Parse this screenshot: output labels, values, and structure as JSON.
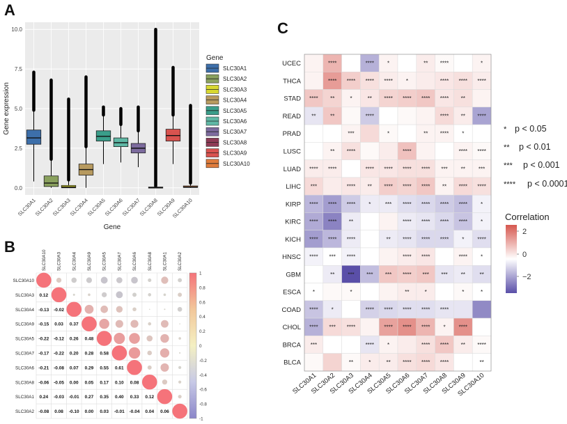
{
  "panels": {
    "A": "A",
    "B": "B",
    "C": "C"
  },
  "chart_data": [
    {
      "panel": "A",
      "type": "boxplot",
      "xlabel": "Gene",
      "ylabel": "Gene expression",
      "ylim": [
        0,
        10
      ],
      "yticks": [
        "0.0",
        "2.5",
        "5.0",
        "7.5",
        "10.0"
      ],
      "legend_title": "Gene",
      "categories": [
        "SLC30A1",
        "SLC30A2",
        "SLC30A3",
        "SLC30A4",
        "SLC30A5",
        "SLC30A6",
        "SLC30A7",
        "SLC30A8",
        "SLC30A9",
        "SLC30A10"
      ],
      "colors": [
        "#3d6faa",
        "#8aa15e",
        "#d8d830",
        "#b79a5f",
        "#3a9e8a",
        "#5fb8a5",
        "#7d6b9e",
        "#8e3b55",
        "#d9534f",
        "#e07c3c"
      ],
      "boxes": [
        {
          "whislo": 0.4,
          "q1": 2.75,
          "med": 3.15,
          "q3": 3.65,
          "whishi": 4.9,
          "outmax": 7.3
        },
        {
          "whislo": 0.0,
          "q1": 0.08,
          "med": 0.3,
          "q3": 0.75,
          "whishi": 1.8,
          "outmax": 6.8
        },
        {
          "whislo": 0.0,
          "q1": 0.0,
          "med": 0.05,
          "q3": 0.15,
          "whishi": 0.5,
          "outmax": 5.6
        },
        {
          "whislo": 0.0,
          "q1": 0.8,
          "med": 1.15,
          "q3": 1.5,
          "whishi": 2.6,
          "outmax": 7.0
        },
        {
          "whislo": 1.5,
          "q1": 2.95,
          "med": 3.25,
          "q3": 3.6,
          "whishi": 4.6,
          "outmax": 5.1
        },
        {
          "whislo": 1.6,
          "q1": 2.6,
          "med": 2.85,
          "q3": 3.15,
          "whishi": 4.0,
          "outmax": 5.0
        },
        {
          "whislo": 1.3,
          "q1": 2.2,
          "med": 2.5,
          "q3": 2.8,
          "whishi": 3.6,
          "outmax": 5.1
        },
        {
          "whislo": 0.0,
          "q1": 0.0,
          "med": 0.0,
          "q3": 0.05,
          "whishi": 0.1,
          "outmax": 10.0
        },
        {
          "whislo": 1.5,
          "q1": 2.95,
          "med": 3.3,
          "q3": 3.7,
          "whishi": 4.6,
          "outmax": 7.6
        },
        {
          "whislo": 0.0,
          "q1": 0.02,
          "med": 0.05,
          "q3": 0.12,
          "whishi": 0.3,
          "outmax": 5.2
        }
      ]
    },
    {
      "panel": "B",
      "type": "correlogram",
      "order": [
        "SLC30A10",
        "SLC30A3",
        "SLC30A4",
        "SLC30A9",
        "SLC30A5",
        "SLC30A7",
        "SLC30A6",
        "SLC30A8",
        "SLC30A1",
        "SLC30A2"
      ],
      "lower": [
        [],
        [
          "0.12"
        ],
        [
          "-0.13",
          "-0.02"
        ],
        [
          "-0.15",
          "0.03",
          "0.37"
        ],
        [
          "-0.22",
          "-0.12",
          "0.26",
          "0.48"
        ],
        [
          "-0.17",
          "-0.22",
          "0.20",
          "0.28",
          "0.58"
        ],
        [
          "-0.21",
          "-0.08",
          "0.07",
          "0.29",
          "0.55",
          "0.61"
        ],
        [
          "-0.06",
          "-0.05",
          "0.00",
          "0.05",
          "0.17",
          "0.10",
          "0.08"
        ],
        [
          "0.24",
          "-0.03",
          "-0.01",
          "0.27",
          "0.35",
          "0.40",
          "0.33",
          "0.12"
        ],
        [
          "-0.08",
          "0.08",
          "-0.10",
          "0.00",
          "0.03",
          "-0.01",
          "-0.04",
          "0.04",
          "0.06"
        ]
      ],
      "colorbar_ticks": [
        "1",
        "0.8",
        "0.6",
        "0.4",
        "0.2",
        "0",
        "-0.2",
        "-0.4",
        "-0.6",
        "-0.8",
        "-1"
      ]
    },
    {
      "panel": "C",
      "type": "heatmap",
      "rows": [
        "UCEC",
        "THCA",
        "STAD",
        "READ",
        "PRAD",
        "LUSC",
        "LUAD",
        "LIHC",
        "KIRP",
        "KIRC",
        "KICH",
        "HNSC",
        "GBM",
        "ESCA",
        "COAD",
        "CHOL",
        "BRCA",
        "BLCA"
      ],
      "cols": [
        "SLC30A1",
        "SLC30A2",
        "SLC30A3",
        "SLC30A4",
        "SLC30A5",
        "SLC30A6",
        "SLC30A7",
        "SLC30A8",
        "SLC30A9",
        "SLC30A10"
      ],
      "values": [
        [
          0.2,
          1.2,
          0.0,
          -1.2,
          0.2,
          0.0,
          0.3,
          0.1,
          0.0,
          0.2
        ],
        [
          0.2,
          1.6,
          0.8,
          0.5,
          0.3,
          0.2,
          0.3,
          0.4,
          0.5,
          0.3
        ],
        [
          0.9,
          0.7,
          0.2,
          0.4,
          0.7,
          0.8,
          0.9,
          0.4,
          0.5,
          0.2
        ],
        [
          -0.4,
          0.9,
          0.1,
          -0.8,
          0.0,
          0.1,
          0.2,
          0.6,
          0.3,
          -1.4
        ],
        [
          0.0,
          0.0,
          0.2,
          0.6,
          0.1,
          0.0,
          0.2,
          0.2,
          0.0,
          0.0
        ],
        [
          0.0,
          0.2,
          0.5,
          0.1,
          0.3,
          1.0,
          0.2,
          0.0,
          0.2,
          0.1
        ],
        [
          0.3,
          0.3,
          0.0,
          0.4,
          0.4,
          0.5,
          0.5,
          0.2,
          0.2,
          0.2
        ],
        [
          0.6,
          0.3,
          0.4,
          0.3,
          0.8,
          0.7,
          0.9,
          0.2,
          0.6,
          0.5
        ],
        [
          -1.1,
          -1.5,
          -0.8,
          -0.3,
          -0.3,
          -0.5,
          -0.6,
          -0.8,
          -1.0,
          -0.2
        ],
        [
          -1.3,
          -1.9,
          -0.3,
          0.0,
          0.2,
          -0.3,
          -0.4,
          -0.6,
          -0.9,
          -0.2
        ],
        [
          -1.5,
          -1.1,
          -0.3,
          0.0,
          -0.3,
          -0.4,
          -0.6,
          -0.6,
          -0.2,
          -0.5
        ],
        [
          -0.2,
          0.0,
          -0.2,
          0.0,
          0.2,
          0.3,
          0.4,
          0.0,
          0.2,
          0.0
        ],
        [
          0.0,
          -0.3,
          -2.7,
          -1.0,
          0.9,
          0.8,
          0.9,
          -0.4,
          -0.3,
          -0.5
        ],
        [
          0.0,
          0.1,
          0.1,
          0.0,
          0.2,
          0.3,
          0.3,
          0.0,
          0.1,
          0.0
        ],
        [
          -0.9,
          -0.3,
          0.0,
          -0.7,
          -0.6,
          -0.5,
          -0.5,
          -0.4,
          -0.4,
          -1.8
        ],
        [
          -1.2,
          0.6,
          0.5,
          0.2,
          1.5,
          1.8,
          1.2,
          0.2,
          1.8,
          0.0
        ],
        [
          0.3,
          0.0,
          0.0,
          -0.4,
          0.2,
          0.3,
          0.5,
          0.9,
          0.3,
          0.1
        ],
        [
          0.1,
          0.7,
          0.1,
          0.3,
          0.3,
          0.5,
          0.6,
          0.4,
          0.0,
          0.0
        ]
      ],
      "stars": [
        [
          "",
          "****",
          "",
          "****",
          "*",
          "",
          "**",
          "****",
          "",
          "*"
        ],
        [
          "",
          "****",
          "****",
          "****",
          "****",
          "*",
          "",
          "****",
          "****",
          "****"
        ],
        [
          "****",
          "**",
          "*",
          "**",
          "****",
          "****",
          "****",
          "****",
          "**",
          ""
        ],
        [
          "**",
          "**",
          "",
          "****",
          "",
          "",
          "",
          "****",
          "**",
          "****"
        ],
        [
          "",
          "",
          "***",
          "",
          "*",
          "",
          "**",
          "****",
          "*",
          ""
        ],
        [
          "",
          "**",
          "****",
          "",
          "",
          "****",
          "",
          "",
          "****",
          "****"
        ],
        [
          "****",
          "****",
          "",
          "****",
          "****",
          "****",
          "****",
          "***",
          "**",
          "***"
        ],
        [
          "***",
          "",
          "****",
          "**",
          "****",
          "****",
          "****",
          "**",
          "****",
          "****"
        ],
        [
          "****",
          "****",
          "****",
          "*",
          "***",
          "****",
          "****",
          "****",
          "****",
          "*"
        ],
        [
          "****",
          "****",
          "**",
          "",
          "",
          "****",
          "****",
          "****",
          "****",
          "*"
        ],
        [
          "****",
          "****",
          "****",
          "",
          "**",
          "****",
          "****",
          "****",
          "*",
          "****"
        ],
        [
          "****",
          "***",
          "****",
          "",
          "",
          "****",
          "****",
          "",
          "****",
          "*"
        ],
        [
          "",
          "**",
          "***",
          "***",
          "***",
          "****",
          "***",
          "***",
          "**",
          "**"
        ],
        [
          "*",
          "",
          "*",
          "",
          "",
          "**",
          "*",
          "",
          "*",
          "*"
        ],
        [
          "****",
          "*",
          "",
          "****",
          "****",
          "****",
          "****",
          "****",
          "",
          ""
        ],
        [
          "****",
          "***",
          "****",
          "",
          "****",
          "****",
          "****",
          "*",
          "****",
          ""
        ],
        [
          "***",
          "",
          "",
          "****",
          "*",
          "",
          "****",
          "****",
          "**",
          "****"
        ],
        [
          "",
          "",
          "**",
          "*",
          "**",
          "****",
          "****",
          "****",
          "",
          "**"
        ]
      ],
      "legend_title": "Correlation",
      "legend_ticks": [
        "2",
        "0",
        "−2"
      ],
      "pvalue_legend": [
        {
          "stars": "*",
          "text": "p < 0.05"
        },
        {
          "stars": "**",
          "text": "p < 0.01"
        },
        {
          "stars": "***",
          "text": "p < 0.001"
        },
        {
          "stars": "****",
          "text": "p < 0.0001"
        }
      ]
    }
  ]
}
